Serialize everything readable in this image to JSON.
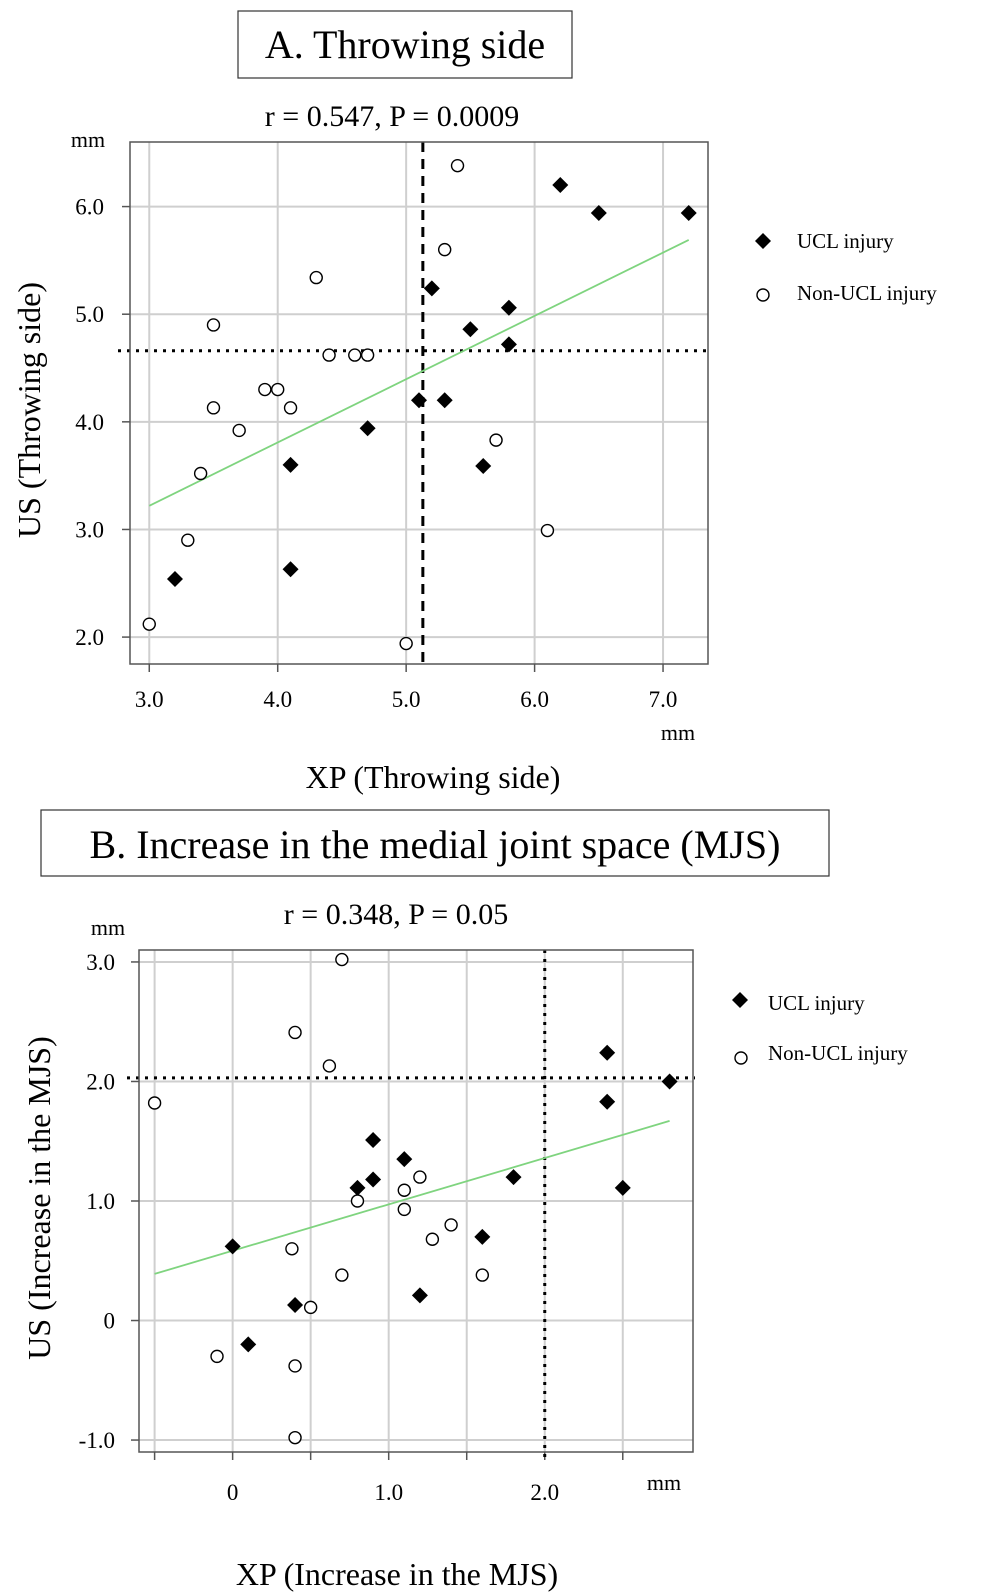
{
  "chart_data": [
    {
      "type": "scatter",
      "title": "A. Throwing side",
      "subtitle": "r = 0.547, P = 0.0009",
      "xlabel": "XP (Throwing side)",
      "ylabel": "US (Throwing side)",
      "x_unit": "mm",
      "y_unit": "mm",
      "xlim": [
        2.85,
        7.35
      ],
      "ylim": [
        1.75,
        6.6
      ],
      "x_ticks": [
        "3.0",
        "4.0",
        "5.0",
        "6.0",
        "7.0"
      ],
      "x_tick_values": [
        3.0,
        4.0,
        5.0,
        6.0,
        7.0
      ],
      "y_ticks": [
        "2.0",
        "3.0",
        "4.0",
        "5.0",
        "6.0"
      ],
      "y_tick_values": [
        2.0,
        3.0,
        4.0,
        5.0,
        6.0
      ],
      "reference_lines": {
        "x": 5.13,
        "y": 4.66
      },
      "fit_line": {
        "x": [
          3.0,
          7.2
        ],
        "y": [
          3.22,
          5.69
        ],
        "color": "#7fd47f"
      },
      "legend": {
        "position": "right",
        "entries": [
          "UCL injury",
          "Non-UCL injury"
        ]
      },
      "series": [
        {
          "name": "UCL injury",
          "marker": "diamond-filled",
          "x": [
            3.2,
            4.1,
            4.1,
            4.7,
            5.1,
            5.2,
            5.3,
            5.5,
            5.6,
            5.8,
            5.8,
            6.2,
            6.5,
            7.2
          ],
          "y": [
            2.54,
            2.63,
            3.6,
            3.94,
            4.2,
            5.24,
            4.2,
            4.86,
            3.59,
            4.72,
            5.06,
            6.2,
            5.94,
            5.94
          ]
        },
        {
          "name": "Non-UCL injury",
          "marker": "circle-open",
          "x": [
            3.0,
            3.3,
            3.4,
            3.5,
            3.5,
            3.7,
            3.9,
            4.0,
            4.1,
            4.3,
            4.4,
            4.6,
            4.7,
            5.0,
            5.3,
            5.4,
            5.7,
            6.1
          ],
          "y": [
            2.12,
            2.9,
            3.52,
            4.9,
            4.13,
            3.92,
            4.3,
            4.3,
            4.13,
            5.34,
            4.62,
            4.62,
            4.62,
            1.94,
            5.6,
            6.38,
            3.83,
            2.99
          ]
        }
      ]
    },
    {
      "type": "scatter",
      "title": "B. Increase in the medial joint space (MJS)",
      "subtitle": "r = 0.348, P = 0.05",
      "xlabel": "XP (Increase in the MJS)",
      "ylabel": "US (Increase in the MJS)",
      "x_unit": "mm",
      "y_unit": "mm",
      "xlim": [
        -0.6,
        2.95
      ],
      "ylim": [
        -1.1,
        3.1
      ],
      "x_ticks": [
        "0",
        "1.0",
        "2.0"
      ],
      "x_tick_values": [
        0,
        1.0,
        2.0
      ],
      "x_grid_values": [
        -0.5,
        0,
        0.5,
        1.0,
        1.5,
        2.0,
        2.5
      ],
      "y_ticks": [
        "-1.0",
        "0",
        "1.0",
        "2.0",
        "3.0"
      ],
      "y_tick_values": [
        -1.0,
        0,
        1.0,
        2.0,
        3.0
      ],
      "reference_lines": {
        "x": 2.0,
        "y": 2.03
      },
      "fit_line": {
        "x": [
          -0.5,
          2.8
        ],
        "y": [
          0.39,
          1.67
        ],
        "color": "#7fd47f"
      },
      "legend": {
        "position": "right",
        "entries": [
          "UCL injury",
          "Non-UCL injury"
        ]
      },
      "series": [
        {
          "name": "UCL injury",
          "marker": "diamond-filled",
          "x": [
            0.0,
            0.1,
            0.4,
            0.8,
            0.9,
            0.9,
            1.1,
            1.2,
            1.6,
            1.8,
            2.4,
            2.4,
            2.5,
            2.8
          ],
          "y": [
            0.62,
            -0.2,
            0.13,
            1.11,
            1.18,
            1.51,
            1.35,
            0.21,
            0.7,
            1.2,
            2.24,
            1.83,
            1.11,
            2.0
          ]
        },
        {
          "name": "Non-UCL injury",
          "marker": "circle-open",
          "x": [
            -0.5,
            -0.1,
            0.38,
            0.4,
            0.4,
            0.4,
            0.5,
            0.62,
            0.7,
            0.7,
            0.8,
            1.1,
            1.1,
            1.2,
            1.28,
            1.4,
            1.6
          ],
          "y": [
            1.82,
            -0.3,
            0.6,
            2.41,
            -0.38,
            -0.98,
            0.11,
            2.13,
            0.38,
            3.02,
            1.0,
            1.09,
            0.93,
            1.2,
            0.68,
            0.8,
            0.38
          ]
        }
      ]
    }
  ]
}
